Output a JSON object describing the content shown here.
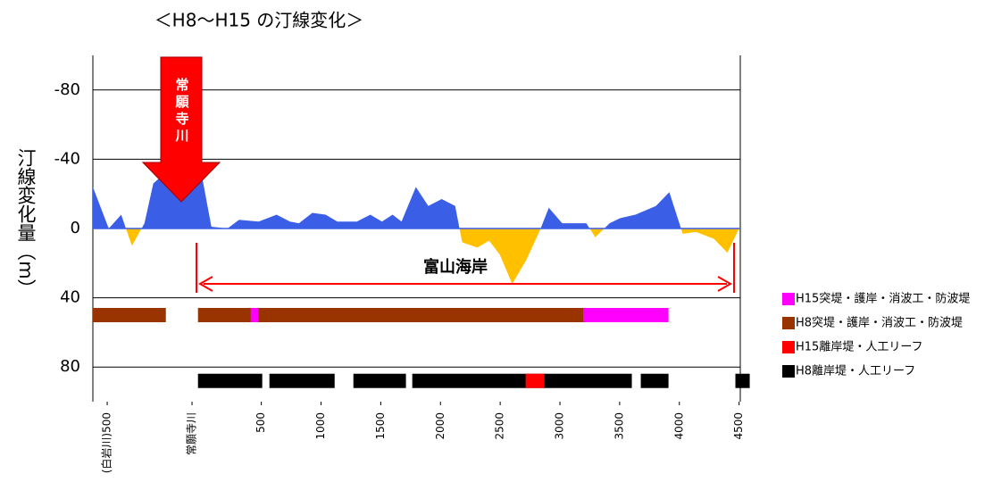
{
  "chart_data": {
    "type": "area",
    "title": "＜H8～H15 の汀線変化＞",
    "y_label": "汀線変化量（m）",
    "x": [
      -910,
      -777,
      -673,
      -583,
      -478,
      -404,
      -306,
      -7,
      82,
      217,
      314,
      478,
      628,
      740,
      815,
      927,
      1039,
      1136,
      1300,
      1413,
      1510,
      1599,
      1674,
      1794,
      1898,
      2010,
      2123,
      2182,
      2309,
      2407,
      2496,
      2601,
      2720,
      2833,
      2907,
      3019,
      3132,
      3221,
      3296,
      3416,
      3505,
      3632,
      3804,
      3916,
      4028,
      4141,
      4290,
      4402,
      4500
    ],
    "values": [
      -24,
      0,
      -8,
      10,
      -3,
      -26,
      -32,
      -34,
      -1,
      0,
      -5,
      -4,
      -8,
      -4,
      -3,
      -9,
      -8,
      -4,
      -4,
      -8,
      -4,
      -8,
      -4,
      -24,
      -13,
      -17,
      -13,
      8,
      11,
      7,
      15,
      32,
      18,
      1,
      -12,
      -3,
      -3,
      -3,
      5,
      -3,
      -6,
      -8,
      -13,
      -21,
      3,
      2,
      6,
      14,
      0
    ],
    "color_negative": "#3b5ee6",
    "color_positive": "#ffc000",
    "xlim": [
      -910,
      4510
    ],
    "ylim": [
      -100,
      100
    ],
    "y_reversed": true,
    "xticks": [
      {
        "value": -790,
        "label": "(白岩川)500"
      },
      {
        "value": -80,
        "label": "常願寺川"
      },
      500,
      1000,
      1500,
      2000,
      2500,
      3000,
      3500,
      4000,
      4500
    ],
    "yticks": [
      -80,
      -40,
      0,
      40,
      80
    ],
    "grid": true,
    "annotations": {
      "river": "常願寺川",
      "coast": "富山海岸"
    },
    "ranges": [
      {
        "name": "H15突堤・護岸・消波工・防波堤",
        "color": "#ff00ff",
        "y": 50,
        "segments": [
          [
            411,
            478
          ],
          [
            3199,
            3909
          ]
        ]
      },
      {
        "name": "H8突堤・護岸・消波工・防波堤",
        "color": "#993300",
        "y": 50,
        "segments": [
          [
            -910,
            -299
          ],
          [
            -30,
            3199
          ]
        ]
      },
      {
        "name": "H15離岸堤・人工リーフ",
        "color": "#ff0000",
        "y": 88,
        "segments": [
          [
            2713,
            2870
          ]
        ]
      },
      {
        "name": "H8離岸堤・人工リーフ",
        "color": "#000000",
        "y": 88,
        "segments": [
          [
            -30,
            508
          ],
          [
            568,
            1114
          ],
          [
            1271,
            1711
          ],
          [
            1764,
            3602
          ],
          [
            3677,
            3909
          ],
          [
            4469,
            4589
          ]
        ]
      }
    ],
    "range_draw_order": [
      1,
      0,
      3,
      2
    ],
    "legend": "right"
  }
}
